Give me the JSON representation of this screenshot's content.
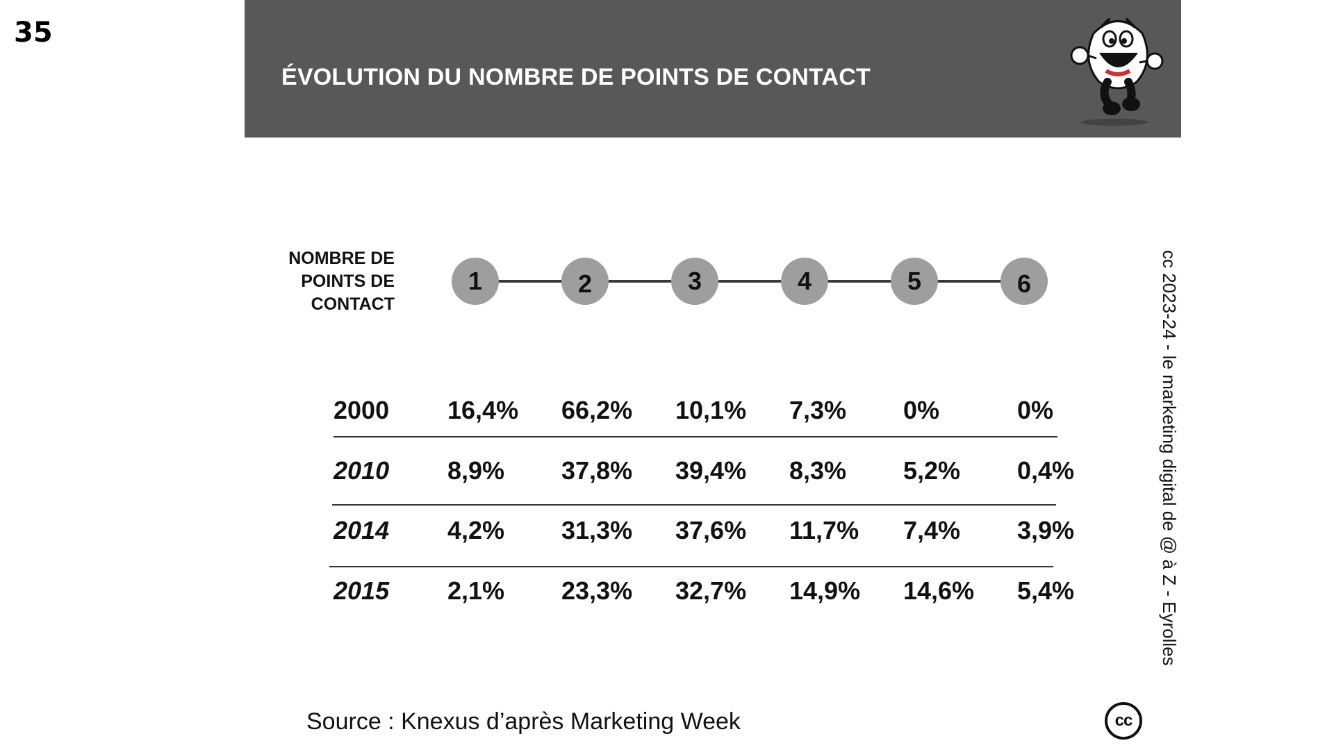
{
  "page_number": "35",
  "header": {
    "title": "ÉVOLUTION DU NOMBRE DE POINTS DE CONTACT"
  },
  "axis_label": [
    "NOMBRE DE",
    "POINTS DE",
    "CONTACT"
  ],
  "contact_points": [
    "1",
    "2",
    "3",
    "4",
    "5",
    "6"
  ],
  "table": {
    "rows": [
      {
        "year": "2000",
        "values": [
          "16,4%",
          "66,2%",
          "10,1%",
          "7,3%",
          "0%",
          "0%"
        ]
      },
      {
        "year": "2010",
        "values": [
          "8,9%",
          "37,8%",
          "39,4%",
          "8,3%",
          "5,2%",
          "0,4%"
        ]
      },
      {
        "year": "2014",
        "values": [
          "4,2%",
          "31,3%",
          "37,6%",
          "11,7%",
          "7,4%",
          "3,9%"
        ]
      },
      {
        "year": "2015",
        "values": [
          "2,1%",
          "23,3%",
          "32,7%",
          "14,9%",
          "14,6%",
          "5,4%"
        ]
      }
    ]
  },
  "source": "Source : Knexus d’après Marketing Week",
  "credit": "cc 2023-24  - le marketing digital de @ à Z - Eyrolles",
  "cc_logo": "cc",
  "colors": {
    "header_bg": "#58575a",
    "circle_fill": "#9e9e9e",
    "line": "#3a3a3a"
  },
  "icons": {
    "mascot": "running-cartoon-character-icon",
    "license": "creative-commons-icon"
  }
}
